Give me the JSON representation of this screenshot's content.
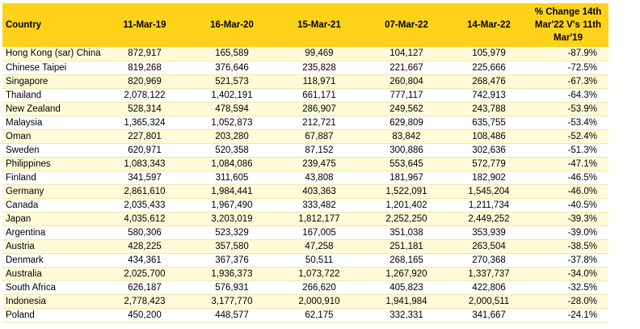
{
  "table": {
    "headers": {
      "country": "Country",
      "d1": "11-Mar-19",
      "d2": "16-Mar-20",
      "d3": "15-Mar-21",
      "d4": "07-Mar-22",
      "d5": "14-Mar-22",
      "pct_line1": "% Change 14th",
      "pct_line2": "Mar'22 V's 11th",
      "pct_line3": "Mar'19"
    },
    "rows": [
      {
        "country": "Hong Kong (sar) China",
        "v1": "872,917",
        "v2": "165,589",
        "v3": "99,469",
        "v4": "104,127",
        "v5": "105,979",
        "pct": "-87.9%"
      },
      {
        "country": "Chinese Taipei",
        "v1": "819,268",
        "v2": "376,646",
        "v3": "235,828",
        "v4": "221,667",
        "v5": "225,666",
        "pct": "-72.5%"
      },
      {
        "country": "Singapore",
        "v1": "820,969",
        "v2": "521,573",
        "v3": "118,971",
        "v4": "260,804",
        "v5": "268,476",
        "pct": "-67.3%"
      },
      {
        "country": "Thailand",
        "v1": "2,078,122",
        "v2": "1,402,191",
        "v3": "661,171",
        "v4": "777,117",
        "v5": "742,913",
        "pct": "-64.3%"
      },
      {
        "country": "New Zealand",
        "v1": "528,314",
        "v2": "478,594",
        "v3": "286,907",
        "v4": "249,562",
        "v5": "243,788",
        "pct": "-53.9%"
      },
      {
        "country": "Malaysia",
        "v1": "1,365,324",
        "v2": "1,052,873",
        "v3": "212,721",
        "v4": "629,809",
        "v5": "635,755",
        "pct": "-53.4%"
      },
      {
        "country": "Oman",
        "v1": "227,801",
        "v2": "203,280",
        "v3": "67,887",
        "v4": "83,842",
        "v5": "108,486",
        "pct": "-52.4%"
      },
      {
        "country": "Sweden",
        "v1": "620,971",
        "v2": "520,358",
        "v3": "87,152",
        "v4": "300,886",
        "v5": "302,636",
        "pct": "-51.3%"
      },
      {
        "country": "Philippines",
        "v1": "1,083,343",
        "v2": "1,084,086",
        "v3": "239,475",
        "v4": "553,645",
        "v5": "572,779",
        "pct": "-47.1%"
      },
      {
        "country": "Finland",
        "v1": "341,597",
        "v2": "311,605",
        "v3": "43,808",
        "v4": "181,967",
        "v5": "182,902",
        "pct": "-46.5%"
      },
      {
        "country": "Germany",
        "v1": "2,861,610",
        "v2": "1,984,441",
        "v3": "403,363",
        "v4": "1,522,091",
        "v5": "1,545,204",
        "pct": "-46.0%"
      },
      {
        "country": "Canada",
        "v1": "2,035,433",
        "v2": "1,967,490",
        "v3": "333,482",
        "v4": "1,201,402",
        "v5": "1,211,734",
        "pct": "-40.5%"
      },
      {
        "country": "Japan",
        "v1": "4,035,612",
        "v2": "3,203,019",
        "v3": "1,812,177",
        "v4": "2,252,250",
        "v5": "2,449,252",
        "pct": "-39.3%"
      },
      {
        "country": "Argentina",
        "v1": "580,306",
        "v2": "523,329",
        "v3": "167,005",
        "v4": "351,038",
        "v5": "353,939",
        "pct": "-39.0%"
      },
      {
        "country": "Austria",
        "v1": "428,225",
        "v2": "357,580",
        "v3": "47,258",
        "v4": "251,181",
        "v5": "263,504",
        "pct": "-38.5%"
      },
      {
        "country": "Denmark",
        "v1": "434,361",
        "v2": "367,376",
        "v3": "50,511",
        "v4": "268,165",
        "v5": "270,368",
        "pct": "-37.8%"
      },
      {
        "country": "Australia",
        "v1": "2,025,700",
        "v2": "1,936,373",
        "v3": "1,073,722",
        "v4": "1,267,920",
        "v5": "1,337,737",
        "pct": "-34.0%"
      },
      {
        "country": "South Africa",
        "v1": "626,187",
        "v2": "576,931",
        "v3": "266,620",
        "v4": "405,823",
        "v5": "422,806",
        "pct": "-32.5%"
      },
      {
        "country": "Indonesia",
        "v1": "2,778,423",
        "v2": "3,177,770",
        "v3": "2,000,910",
        "v4": "1,941,984",
        "v5": "2,000,511",
        "pct": "-28.0%"
      },
      {
        "country": "Poland",
        "v1": "450,200",
        "v2": "448,577",
        "v3": "62,175",
        "v4": "332,331",
        "v5": "341,667",
        "pct": "-24.1%"
      }
    ]
  },
  "colors": {
    "header_bg": "#ffd21a",
    "stripe_bg": "#fffbd9"
  }
}
